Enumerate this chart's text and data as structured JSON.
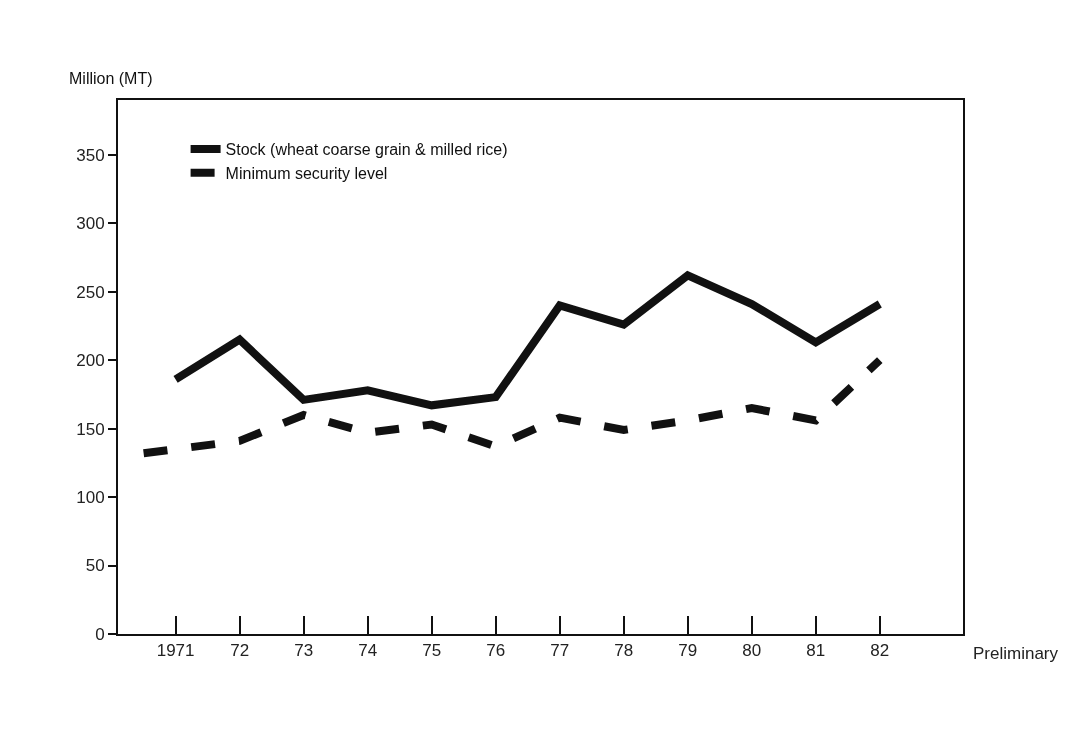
{
  "chart_data": {
    "type": "line",
    "ylabel": "Million (MT)",
    "x": [
      1971,
      1972,
      1973,
      1974,
      1975,
      1976,
      1977,
      1978,
      1979,
      1980,
      1981,
      1982
    ],
    "series": [
      {
        "name": "Stock (wheat coarse grain & milled rice)",
        "color": "#111111",
        "line_style": "solid",
        "values": [
          186,
          215,
          171,
          178,
          167,
          173,
          240,
          226,
          262,
          241,
          213,
          241
        ]
      },
      {
        "name": "Minimum security level",
        "color": "#111111",
        "line_style": "dashed",
        "x": [
          1970.5,
          1971,
          1972,
          1973,
          1974,
          1975,
          1976,
          1977,
          1978,
          1979,
          1980,
          1981,
          1982
        ],
        "values": [
          132,
          135,
          141,
          160,
          147,
          153,
          137,
          158,
          149,
          156,
          165,
          156,
          200
        ]
      }
    ],
    "xlim": [
      1970.1,
      1983.3
    ],
    "xticks": [
      {
        "value": 1971,
        "label": "1971"
      },
      {
        "value": 1972,
        "label": "72"
      },
      {
        "value": 1973,
        "label": "73"
      },
      {
        "value": 1974,
        "label": "74"
      },
      {
        "value": 1975,
        "label": "75"
      },
      {
        "value": 1976,
        "label": "76"
      },
      {
        "value": 1977,
        "label": "77"
      },
      {
        "value": 1978,
        "label": "78"
      },
      {
        "value": 1979,
        "label": "79"
      },
      {
        "value": 1980,
        "label": "80"
      },
      {
        "value": 1981,
        "label": "81"
      },
      {
        "value": 1982,
        "label": "82"
      }
    ],
    "ylim": [
      0,
      390
    ],
    "yticks": [
      0,
      50,
      100,
      150,
      200,
      250,
      300,
      350
    ],
    "annotations": [
      "Preliminary"
    ],
    "legend": "top left",
    "marker": "none"
  }
}
